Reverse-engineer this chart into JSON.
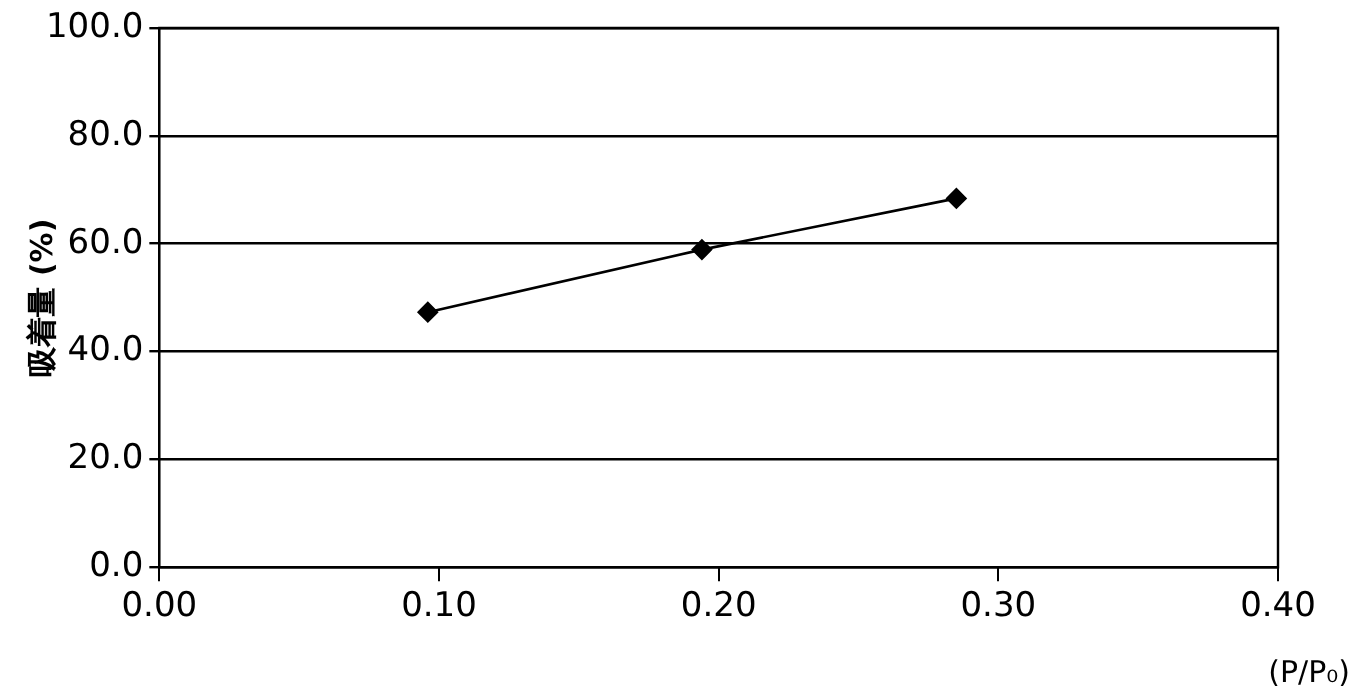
{
  "chart_data": {
    "type": "line",
    "ylabel": "吸着量 (%)",
    "xlabel": "(P/P₀)",
    "x": [
      0.096,
      0.194,
      0.285
    ],
    "series": [
      {
        "color": "#000000",
        "values": [
          47.3,
          58.9,
          68.4
        ]
      }
    ],
    "xlim": [
      0,
      0.4
    ],
    "xticks": [
      {
        "value": 0,
        "label": "0.00"
      },
      {
        "value": 0.1,
        "label": "0.10"
      },
      {
        "value": 0.2,
        "label": "0.20"
      },
      {
        "value": 0.3,
        "label": "0.30"
      },
      {
        "value": 0.4,
        "label": "0.40"
      }
    ],
    "ylim": [
      0,
      100
    ],
    "yticks": [
      {
        "value": 0,
        "label": "0.0"
      },
      {
        "value": 20,
        "label": "20.0"
      },
      {
        "value": 40,
        "label": "40.0"
      },
      {
        "value": 60,
        "label": "60.0"
      },
      {
        "value": 80,
        "label": "80.0"
      },
      {
        "value": 100,
        "label": "100.0"
      }
    ],
    "grid": "y",
    "legend": false,
    "marker": "diamond",
    "line_style": "solid"
  }
}
